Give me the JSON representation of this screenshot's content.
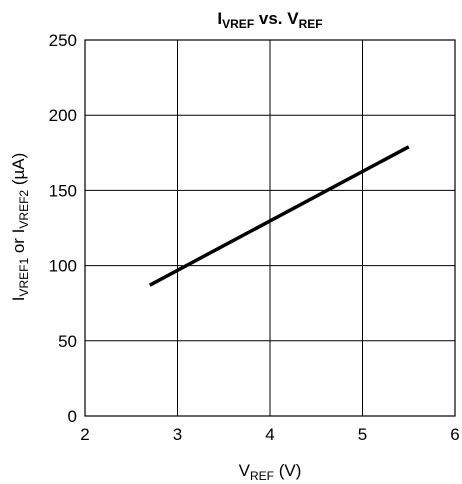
{
  "chart_data": {
    "type": "line",
    "title": {
      "main": "I",
      "main_sub": "VREF",
      "mid": " vs. V",
      "end_sub": "REF"
    },
    "xlabel": {
      "main": "V",
      "sub": "REF",
      "rest": " (V)"
    },
    "ylabel": {
      "p1": "I",
      "s1": "VREF1",
      "p2": " or I",
      "s2": "VREF2",
      "p3": " (µA)"
    },
    "xlim": [
      2,
      6
    ],
    "ylim": [
      0,
      250
    ],
    "x_ticks": [
      "2",
      "3",
      "4",
      "5",
      "6"
    ],
    "y_ticks": [
      "0",
      "50",
      "100",
      "150",
      "200",
      "250"
    ],
    "grid": true,
    "series": [
      {
        "x": [
          2.7,
          5.5
        ],
        "y": [
          87,
          179
        ]
      }
    ]
  }
}
